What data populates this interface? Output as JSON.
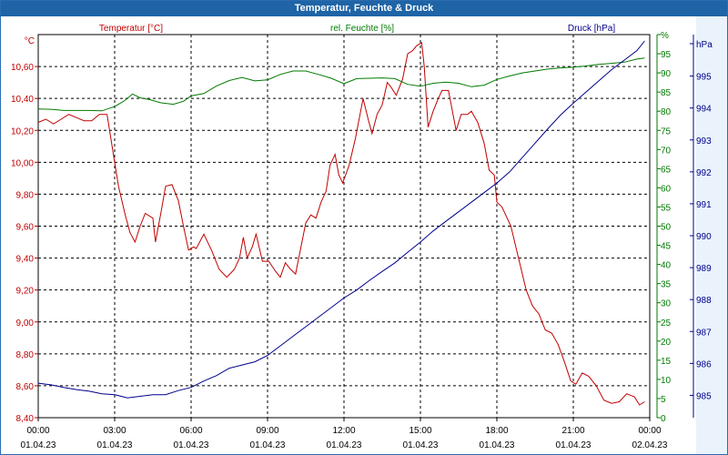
{
  "window": {
    "title": "Temperatur, Feuchte & Druck"
  },
  "chart_data": {
    "type": "line",
    "title": "Temperatur, Feuchte & Druck",
    "grid": true,
    "x": {
      "range": [
        "01.04.23 00:00",
        "02.04.23 00:00"
      ],
      "ticks": [
        {
          "time": "00:00",
          "date": "01.04.23"
        },
        {
          "time": "03:00",
          "date": "01.04.23"
        },
        {
          "time": "06:00",
          "date": "01.04.23"
        },
        {
          "time": "09:00",
          "date": "01.04.23"
        },
        {
          "time": "12:00",
          "date": "01.04.23"
        },
        {
          "time": "15:00",
          "date": "01.04.23"
        },
        {
          "time": "18:00",
          "date": "01.04.23"
        },
        {
          "time": "21:00",
          "date": "01.04.23"
        },
        {
          "time": "00:00",
          "date": "02.04.23"
        }
      ]
    },
    "axes": {
      "temperature": {
        "unit": "°C",
        "range": [
          8.4,
          10.8
        ],
        "ticks": [
          "8,40",
          "8,60",
          "8,80",
          "9,00",
          "9,20",
          "9,40",
          "9,60",
          "9,80",
          "10,00",
          "10,20",
          "10,40",
          "10,60"
        ],
        "color": "#c00000"
      },
      "humidity": {
        "unit": "%",
        "range": [
          0,
          100
        ],
        "ticks": [
          "0",
          "5",
          "10",
          "15",
          "20",
          "25",
          "30",
          "35",
          "40",
          "45",
          "50",
          "55",
          "60",
          "65",
          "70",
          "75",
          "80",
          "85",
          "90",
          "95",
          "%"
        ],
        "color": "#007a00"
      },
      "pressure": {
        "unit": "hPa",
        "range": [
          984.3,
          996.3
        ],
        "ticks": [
          "985",
          "986",
          "987",
          "988",
          "989",
          "990",
          "991",
          "992",
          "993",
          "994",
          "995",
          "hPa"
        ],
        "color": "#00008b"
      }
    },
    "series": [
      {
        "name": "Temperatur [°C]",
        "axis": "temperature",
        "color": "#c00000",
        "points": [
          [
            0.0,
            10.25
          ],
          [
            0.3,
            10.27
          ],
          [
            0.6,
            10.24
          ],
          [
            0.9,
            10.27
          ],
          [
            1.2,
            10.3
          ],
          [
            1.5,
            10.28
          ],
          [
            1.8,
            10.26
          ],
          [
            2.1,
            10.26
          ],
          [
            2.4,
            10.3
          ],
          [
            2.7,
            10.3
          ],
          [
            3.0,
            10.0
          ],
          [
            3.15,
            9.85
          ],
          [
            3.4,
            9.68
          ],
          [
            3.6,
            9.56
          ],
          [
            3.8,
            9.5
          ],
          [
            4.0,
            9.6
          ],
          [
            4.2,
            9.68
          ],
          [
            4.5,
            9.65
          ],
          [
            4.6,
            9.5
          ],
          [
            4.8,
            9.67
          ],
          [
            5.0,
            9.85
          ],
          [
            5.25,
            9.86
          ],
          [
            5.5,
            9.76
          ],
          [
            5.7,
            9.6
          ],
          [
            5.9,
            9.45
          ],
          [
            6.1,
            9.47
          ],
          [
            6.2,
            9.46
          ],
          [
            6.5,
            9.55
          ],
          [
            6.8,
            9.45
          ],
          [
            7.1,
            9.33
          ],
          [
            7.4,
            9.28
          ],
          [
            7.7,
            9.33
          ],
          [
            7.9,
            9.4
          ],
          [
            8.05,
            9.53
          ],
          [
            8.2,
            9.4
          ],
          [
            8.4,
            9.47
          ],
          [
            8.55,
            9.55
          ],
          [
            8.8,
            9.38
          ],
          [
            9.05,
            9.38
          ],
          [
            9.3,
            9.32
          ],
          [
            9.5,
            9.28
          ],
          [
            9.7,
            9.37
          ],
          [
            9.9,
            9.33
          ],
          [
            10.1,
            9.3
          ],
          [
            10.2,
            9.38
          ],
          [
            10.5,
            9.62
          ],
          [
            10.7,
            9.67
          ],
          [
            10.9,
            9.65
          ],
          [
            11.1,
            9.75
          ],
          [
            11.3,
            9.82
          ],
          [
            11.45,
            9.98
          ],
          [
            11.65,
            10.05
          ],
          [
            11.8,
            9.92
          ],
          [
            11.95,
            9.87
          ],
          [
            12.2,
            9.98
          ],
          [
            12.45,
            10.15
          ],
          [
            12.75,
            10.4
          ],
          [
            12.95,
            10.27
          ],
          [
            13.1,
            10.18
          ],
          [
            13.3,
            10.3
          ],
          [
            13.5,
            10.36
          ],
          [
            13.7,
            10.5
          ],
          [
            13.85,
            10.47
          ],
          [
            14.05,
            10.42
          ],
          [
            14.3,
            10.52
          ],
          [
            14.5,
            10.68
          ],
          [
            14.7,
            10.7
          ],
          [
            14.85,
            10.73
          ],
          [
            15.05,
            10.75
          ],
          [
            15.15,
            10.6
          ],
          [
            15.3,
            10.22
          ],
          [
            15.5,
            10.32
          ],
          [
            15.7,
            10.4
          ],
          [
            15.85,
            10.45
          ],
          [
            16.1,
            10.45
          ],
          [
            16.4,
            10.2
          ],
          [
            16.6,
            10.3
          ],
          [
            16.85,
            10.3
          ],
          [
            17.0,
            10.32
          ],
          [
            17.25,
            10.25
          ],
          [
            17.5,
            10.12
          ],
          [
            17.7,
            9.95
          ],
          [
            17.9,
            9.92
          ],
          [
            18.0,
            9.75
          ],
          [
            18.2,
            9.72
          ],
          [
            18.55,
            9.6
          ],
          [
            18.85,
            9.4
          ],
          [
            19.15,
            9.2
          ],
          [
            19.4,
            9.1
          ],
          [
            19.65,
            9.05
          ],
          [
            19.9,
            8.95
          ],
          [
            20.15,
            8.93
          ],
          [
            20.4,
            8.86
          ],
          [
            20.65,
            8.75
          ],
          [
            20.9,
            8.63
          ],
          [
            21.1,
            8.61
          ],
          [
            21.35,
            8.68
          ],
          [
            21.6,
            8.66
          ],
          [
            21.9,
            8.6
          ],
          [
            22.2,
            8.51
          ],
          [
            22.5,
            8.49
          ],
          [
            22.8,
            8.5
          ],
          [
            23.1,
            8.55
          ],
          [
            23.4,
            8.53
          ],
          [
            23.6,
            8.48
          ],
          [
            23.8,
            8.5
          ]
        ]
      },
      {
        "name": "rel. Feuchte [%]",
        "axis": "humidity",
        "color": "#007a00",
        "points": [
          [
            0.0,
            80.6
          ],
          [
            0.5,
            80.5
          ],
          [
            1.0,
            80.2
          ],
          [
            1.5,
            80.2
          ],
          [
            2.0,
            80.2
          ],
          [
            2.5,
            80.1
          ],
          [
            3.0,
            81.2
          ],
          [
            3.4,
            82.8
          ],
          [
            3.7,
            84.5
          ],
          [
            4.0,
            83.5
          ],
          [
            4.4,
            83.0
          ],
          [
            4.8,
            82.2
          ],
          [
            5.3,
            81.8
          ],
          [
            5.7,
            82.6
          ],
          [
            6.0,
            84.0
          ],
          [
            6.5,
            84.6
          ],
          [
            7.0,
            86.6
          ],
          [
            7.5,
            88.0
          ],
          [
            8.0,
            88.8
          ],
          [
            8.5,
            87.9
          ],
          [
            9.0,
            88.2
          ],
          [
            9.5,
            89.6
          ],
          [
            10.0,
            90.5
          ],
          [
            10.5,
            90.5
          ],
          [
            11.0,
            89.6
          ],
          [
            11.5,
            88.6
          ],
          [
            12.0,
            87.2
          ],
          [
            12.5,
            88.5
          ],
          [
            13.0,
            88.6
          ],
          [
            13.5,
            88.7
          ],
          [
            14.0,
            88.5
          ],
          [
            14.5,
            87.0
          ],
          [
            15.0,
            86.5
          ],
          [
            15.5,
            87.3
          ],
          [
            16.0,
            87.6
          ],
          [
            16.5,
            87.3
          ],
          [
            17.0,
            86.4
          ],
          [
            17.5,
            86.8
          ],
          [
            18.0,
            88.3
          ],
          [
            18.5,
            89.2
          ],
          [
            19.0,
            90.0
          ],
          [
            19.5,
            90.5
          ],
          [
            20.0,
            91.0
          ],
          [
            20.5,
            91.3
          ],
          [
            21.0,
            91.5
          ],
          [
            21.5,
            91.8
          ],
          [
            22.0,
            92.2
          ],
          [
            22.5,
            92.5
          ],
          [
            23.0,
            92.8
          ],
          [
            23.5,
            93.6
          ],
          [
            23.8,
            93.9
          ]
        ]
      },
      {
        "name": "Druck [hPa]",
        "axis": "pressure",
        "color": "#00008b",
        "points": [
          [
            0.0,
            985.38
          ],
          [
            0.5,
            985.33
          ],
          [
            1.0,
            985.25
          ],
          [
            1.5,
            985.18
          ],
          [
            2.0,
            985.13
          ],
          [
            2.5,
            985.05
          ],
          [
            3.0,
            985.02
          ],
          [
            3.5,
            984.92
          ],
          [
            4.0,
            984.97
          ],
          [
            4.5,
            985.02
          ],
          [
            5.0,
            985.02
          ],
          [
            5.5,
            985.15
          ],
          [
            6.0,
            985.25
          ],
          [
            6.5,
            985.45
          ],
          [
            7.0,
            985.62
          ],
          [
            7.5,
            985.85
          ],
          [
            8.0,
            985.95
          ],
          [
            8.5,
            986.05
          ],
          [
            9.0,
            986.25
          ],
          [
            9.5,
            986.55
          ],
          [
            10.0,
            986.85
          ],
          [
            10.5,
            987.15
          ],
          [
            11.0,
            987.45
          ],
          [
            11.5,
            987.75
          ],
          [
            12.0,
            988.05
          ],
          [
            12.5,
            988.3
          ],
          [
            13.0,
            988.6
          ],
          [
            13.5,
            988.88
          ],
          [
            14.0,
            989.15
          ],
          [
            14.5,
            989.48
          ],
          [
            15.0,
            989.8
          ],
          [
            15.5,
            990.15
          ],
          [
            16.0,
            990.45
          ],
          [
            16.5,
            990.75
          ],
          [
            17.0,
            991.05
          ],
          [
            17.5,
            991.35
          ],
          [
            18.0,
            991.65
          ],
          [
            18.5,
            992.0
          ],
          [
            19.0,
            992.45
          ],
          [
            19.5,
            992.9
          ],
          [
            20.0,
            993.35
          ],
          [
            20.5,
            993.78
          ],
          [
            21.0,
            994.15
          ],
          [
            21.5,
            994.5
          ],
          [
            22.0,
            994.85
          ],
          [
            22.5,
            995.2
          ],
          [
            23.0,
            995.5
          ],
          [
            23.5,
            995.8
          ],
          [
            23.8,
            996.1
          ]
        ]
      }
    ]
  }
}
